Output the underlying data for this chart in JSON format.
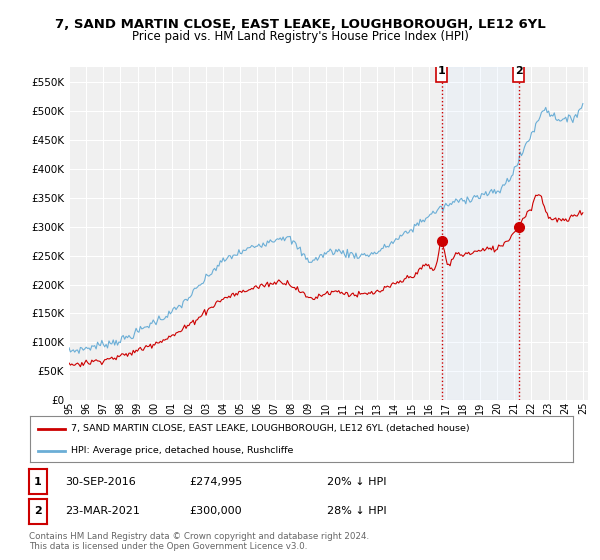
{
  "title": "7, SAND MARTIN CLOSE, EAST LEAKE, LOUGHBOROUGH, LE12 6YL",
  "subtitle": "Price paid vs. HM Land Registry's House Price Index (HPI)",
  "title_fontsize": 9.5,
  "subtitle_fontsize": 8.5,
  "background_color": "#ffffff",
  "plot_bg_color": "#f0f0f0",
  "grid_color": "#cccccc",
  "hpi_color": "#6baed6",
  "price_color": "#cc0000",
  "marker_color": "#cc0000",
  "shade_color": "#ddeeff",
  "ylim": [
    0,
    575000
  ],
  "yticks": [
    0,
    50000,
    100000,
    150000,
    200000,
    250000,
    300000,
    350000,
    400000,
    450000,
    500000,
    550000
  ],
  "x_start_year": 1995,
  "x_end_year": 2025,
  "transaction1_date": "30-SEP-2016",
  "transaction1_price": 274995,
  "transaction1_pct": "20%",
  "transaction1_x": 2016.75,
  "transaction2_date": "23-MAR-2021",
  "transaction2_price": 300000,
  "transaction2_pct": "28%",
  "transaction2_x": 2021.25,
  "legend_line1": "7, SAND MARTIN CLOSE, EAST LEAKE, LOUGHBOROUGH, LE12 6YL (detached house)",
  "legend_line2": "HPI: Average price, detached house, Rushcliffe",
  "footer": "Contains HM Land Registry data © Crown copyright and database right 2024.\nThis data is licensed under the Open Government Licence v3.0."
}
